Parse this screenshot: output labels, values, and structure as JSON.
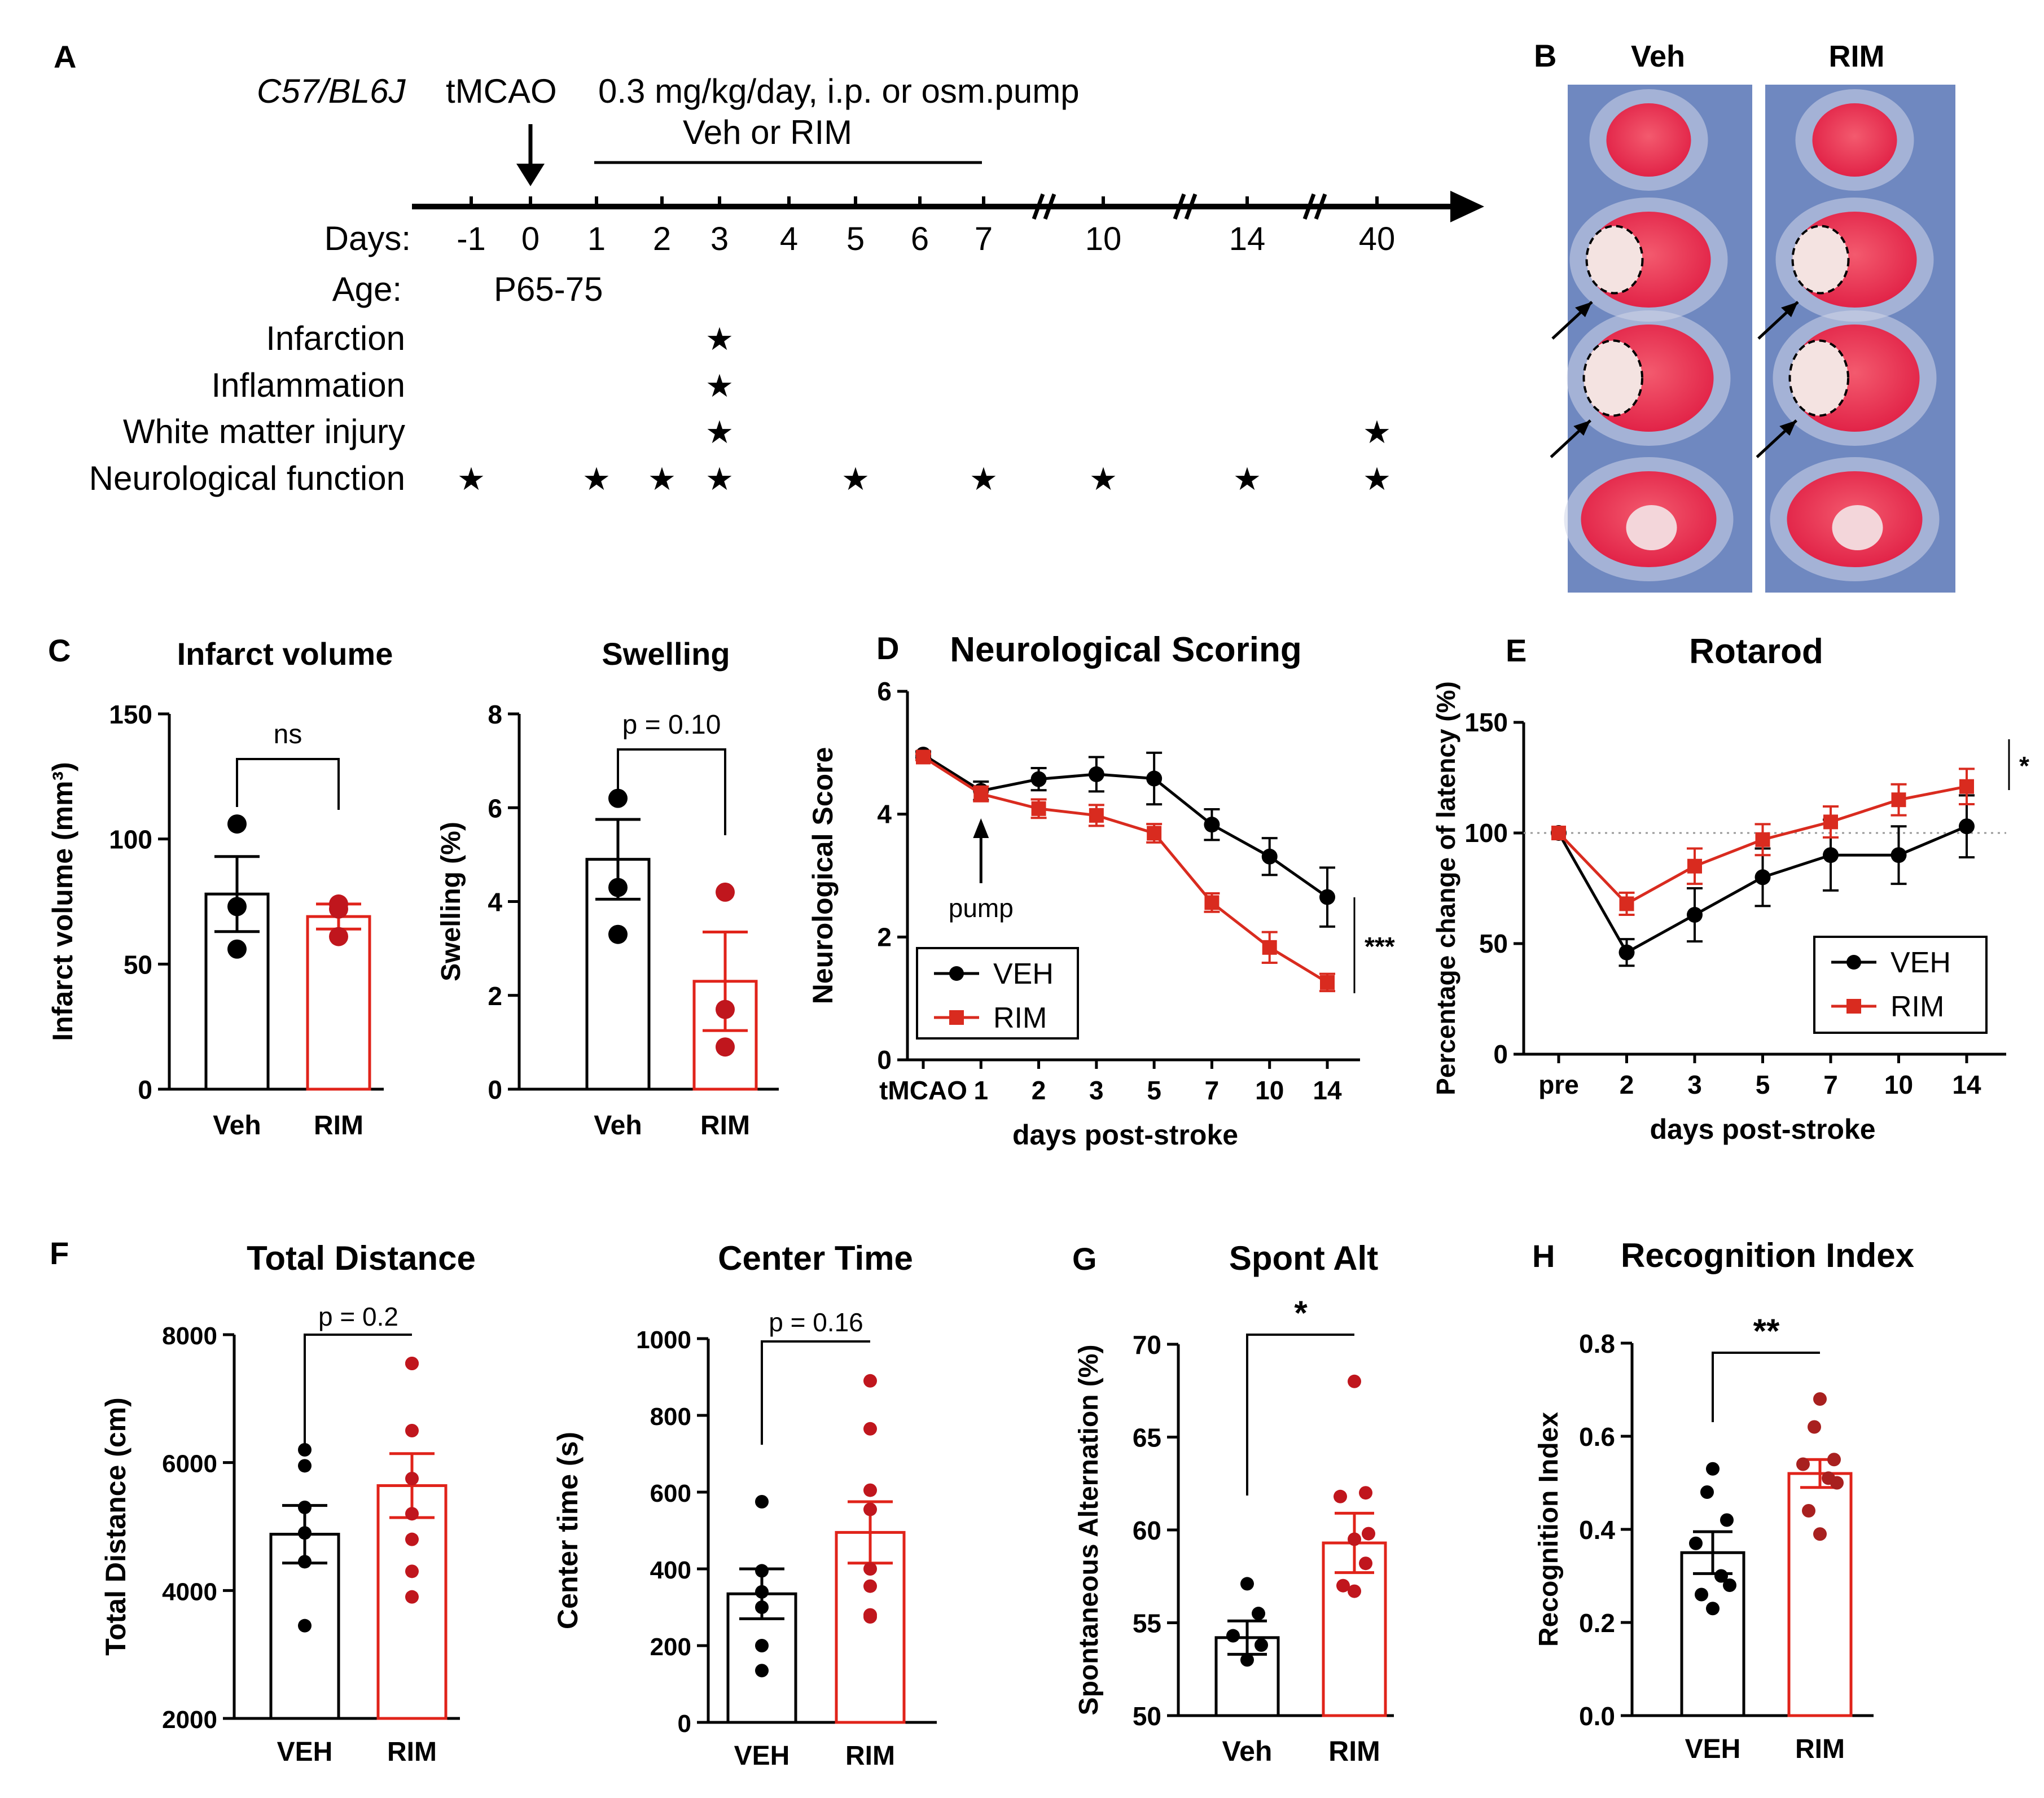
{
  "colors": {
    "veh": "#000000",
    "rim_bar": "#e0231a",
    "rim_dot": "#c0161d",
    "rim_dot_dark": "#a8201f",
    "line_rim": "#d92b1f",
    "tissue": "#e62f4d",
    "background_blue": "#6f88c0"
  },
  "panelA": {
    "label": "A",
    "strain": "C57/BL6J",
    "event": "tMCAO",
    "treatment_line1": "0.3 mg/kg/day, i.p. or osm.pump",
    "treatment_line2": "Veh or RIM",
    "days_label": "Days:",
    "days": [
      "-1",
      "0",
      "1",
      "2",
      "3",
      "4",
      "5",
      "6",
      "7",
      "10",
      "14",
      "40"
    ],
    "age_label": "Age:",
    "age_value": "P65-75",
    "star_glyph": "★",
    "rows": [
      {
        "label": "Infarction",
        "days": [
          "3"
        ]
      },
      {
        "label": "Inflammation",
        "days": [
          "3"
        ]
      },
      {
        "label": "White matter injury",
        "days": [
          "3",
          "40"
        ]
      },
      {
        "label": "Neurological function",
        "days": [
          "-1",
          "1",
          "2",
          "3",
          "5",
          "7",
          "10",
          "14",
          "40"
        ]
      }
    ]
  },
  "panelB": {
    "label": "B",
    "col1": "Veh",
    "col2": "RIM"
  },
  "chart_data": [
    {
      "id": "C1",
      "panel_label": "C",
      "type": "bar",
      "title": "Infarct volume",
      "ylabel": "Infarct volume (mm³)",
      "ylim": [
        0,
        150
      ],
      "yticks": [
        0,
        50,
        100,
        150
      ],
      "categories": [
        "Veh",
        "RIM"
      ],
      "means": [
        78,
        69
      ],
      "sem": [
        15,
        5
      ],
      "points": [
        [
          106,
          73,
          56
        ],
        [
          74,
          72,
          61
        ]
      ],
      "stat": "ns"
    },
    {
      "id": "C2",
      "type": "bar",
      "title": "Swelling",
      "ylabel": "Swelling (%)",
      "ylim": [
        0,
        8
      ],
      "yticks": [
        0,
        2,
        4,
        6,
        8
      ],
      "categories": [
        "Veh",
        "RIM"
      ],
      "means": [
        4.9,
        2.3
      ],
      "sem": [
        0.85,
        1.05
      ],
      "points": [
        [
          6.2,
          4.3,
          3.3
        ],
        [
          4.2,
          1.7,
          0.9
        ]
      ],
      "stat": "p = 0.10"
    },
    {
      "id": "D",
      "panel_label": "D",
      "type": "line",
      "title": "Neurological Scoring",
      "ylabel": "Neurological Score",
      "xlabel": "days post-stroke",
      "ylim": [
        0,
        6
      ],
      "yticks": [
        0,
        2,
        4,
        6
      ],
      "categories": [
        "tMCAO",
        "1",
        "2",
        "3",
        "5",
        "7",
        "10",
        "14"
      ],
      "series": [
        {
          "name": "VEH",
          "values": [
            4.97,
            4.38,
            4.57,
            4.65,
            4.58,
            3.83,
            3.31,
            2.65
          ],
          "sem": [
            0.05,
            0.15,
            0.18,
            0.28,
            0.42,
            0.25,
            0.3,
            0.48
          ]
        },
        {
          "name": "RIM",
          "values": [
            4.93,
            4.33,
            4.09,
            3.98,
            3.69,
            2.56,
            1.83,
            1.26
          ],
          "sem": [
            0.05,
            0.12,
            0.15,
            0.17,
            0.15,
            0.15,
            0.25,
            0.14
          ]
        }
      ],
      "annotation": "pump",
      "stat": "***"
    },
    {
      "id": "E",
      "panel_label": "E",
      "type": "line",
      "title": "Rotarod",
      "ylabel": "Percentage change of latency (%)",
      "xlabel": "days post-stroke",
      "ylim": [
        0,
        150
      ],
      "yticks": [
        0,
        50,
        100,
        150
      ],
      "categories": [
        "pre",
        "2",
        "3",
        "5",
        "7",
        "10",
        "14"
      ],
      "series": [
        {
          "name": "VEH",
          "values": [
            100,
            46,
            63,
            80,
            90,
            90,
            103
          ],
          "sem": [
            0,
            6,
            12,
            13,
            16,
            13,
            14
          ]
        },
        {
          "name": "RIM",
          "values": [
            100,
            68,
            85,
            97,
            105,
            115,
            121
          ],
          "sem": [
            0,
            5,
            8,
            7,
            7,
            7,
            8
          ]
        }
      ],
      "stat": "*"
    },
    {
      "id": "F1",
      "panel_label": "F",
      "type": "bar",
      "title": "Total Distance",
      "ylabel": "Total Distance (cm)",
      "ylim": [
        2000,
        8000
      ],
      "yticks": [
        2000,
        4000,
        6000,
        8000
      ],
      "categories": [
        "VEH",
        "RIM"
      ],
      "means": [
        4880,
        5640
      ],
      "sem": [
        450,
        500
      ],
      "points": [
        [
          6200,
          5950,
          5300,
          4900,
          4450,
          3450
        ],
        [
          7550,
          7550,
          6500,
          5750,
          5200,
          4800,
          4300,
          3900
        ]
      ],
      "stat": "p = 0.2"
    },
    {
      "id": "F2",
      "type": "bar",
      "title": "Center Time",
      "ylabel": "Center time (s)",
      "ylim": [
        0,
        1000
      ],
      "yticks": [
        0,
        200,
        400,
        600,
        800,
        1000
      ],
      "categories": [
        "VEH",
        "RIM"
      ],
      "means": [
        335,
        495
      ],
      "sem": [
        65,
        80
      ],
      "points": [
        [
          575,
          395,
          340,
          300,
          200,
          135
        ],
        [
          890,
          765,
          605,
          555,
          400,
          355,
          280,
          275
        ]
      ],
      "stat": "p = 0.16"
    },
    {
      "id": "G",
      "panel_label": "G",
      "type": "bar",
      "title": "Spont Alt",
      "ylabel": "Spontaneous Alternation (%)",
      "ylim": [
        50,
        70
      ],
      "yticks": [
        50,
        55,
        60,
        65,
        70
      ],
      "categories": [
        "Veh",
        "RIM"
      ],
      "means": [
        54.2,
        59.3
      ],
      "sem": [
        0.9,
        1.6
      ],
      "points": [
        [
          57.1,
          55.5,
          54.3,
          53.8,
          53.0
        ],
        [
          68.0,
          62.0,
          61.8,
          59.8,
          59.5,
          58.2,
          57.0,
          56.7
        ]
      ],
      "stat": "*"
    },
    {
      "id": "H",
      "panel_label": "H",
      "type": "bar",
      "title": "Recognition Index",
      "ylabel": "Recognition Index",
      "ylim": [
        0.0,
        0.8
      ],
      "yticks": [
        "0.0",
        "0.2",
        "0.4",
        "0.6",
        "0.8"
      ],
      "categories": [
        "VEH",
        "RIM"
      ],
      "means": [
        0.35,
        0.52
      ],
      "sem": [
        0.045,
        0.03
      ],
      "points": [
        [
          0.53,
          0.48,
          0.42,
          0.37,
          0.3,
          0.28,
          0.26,
          0.23
        ],
        [
          0.68,
          0.62,
          0.55,
          0.54,
          0.51,
          0.5,
          0.44,
          0.39
        ]
      ],
      "stat": "**"
    }
  ]
}
